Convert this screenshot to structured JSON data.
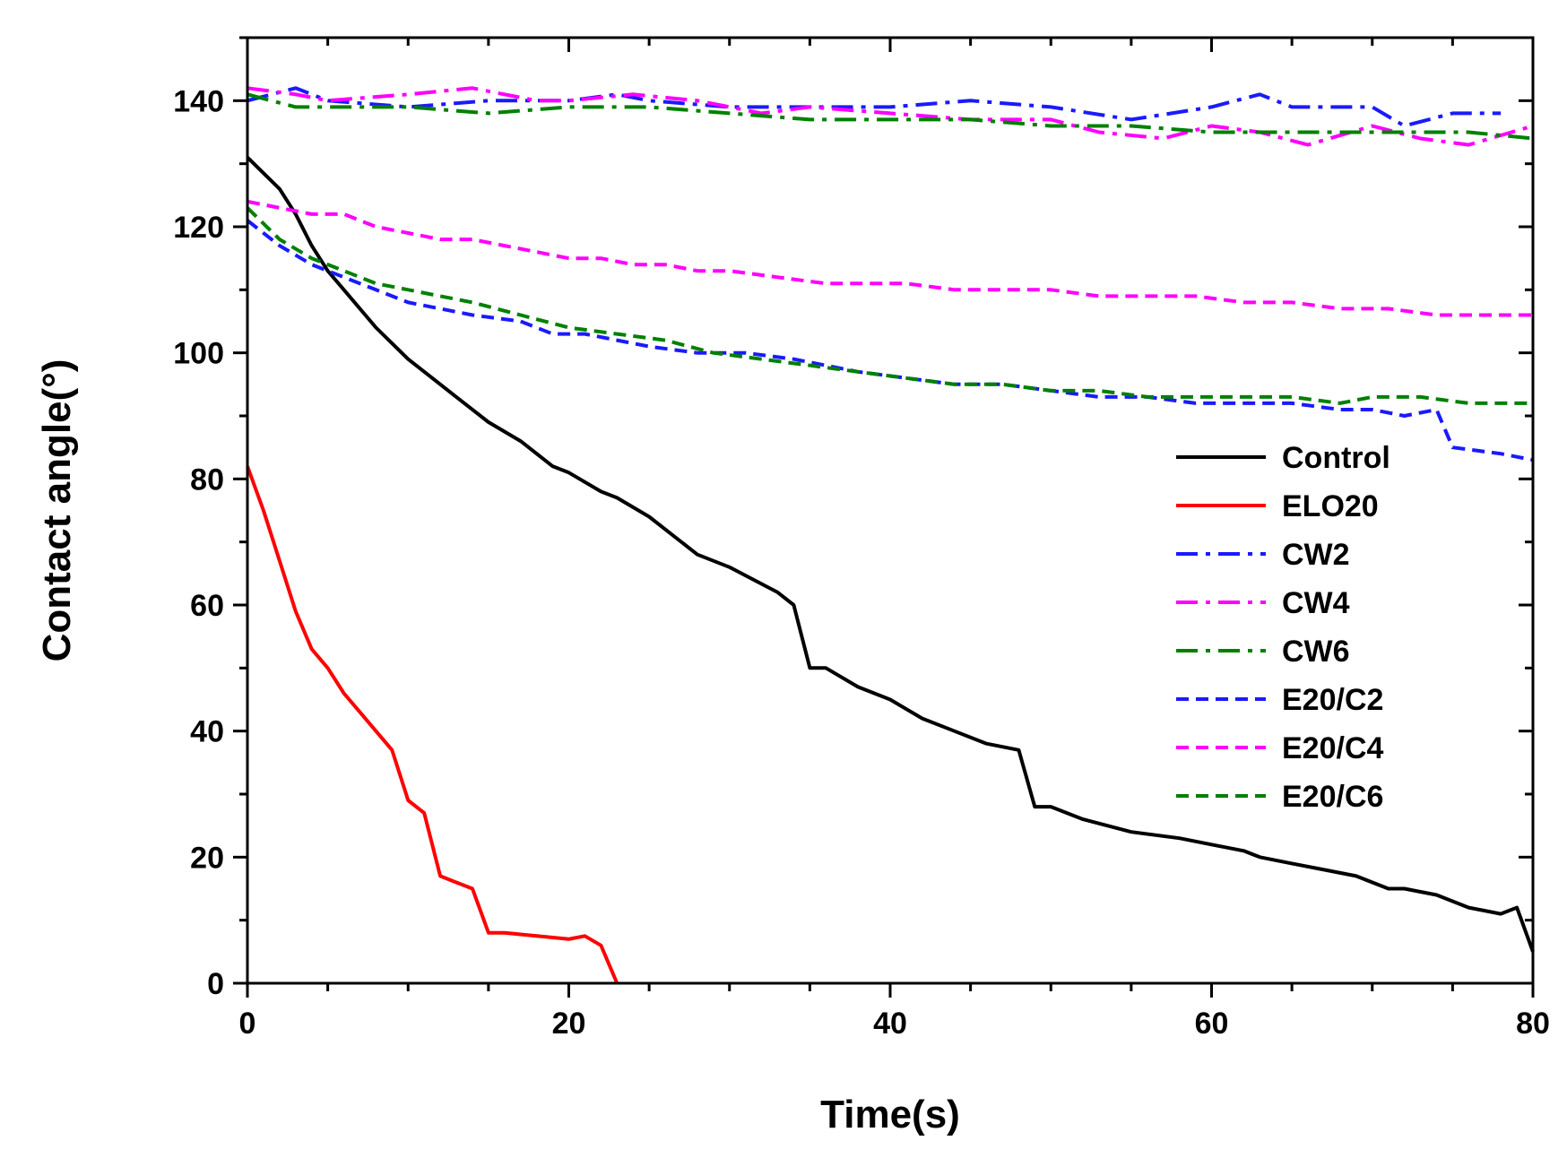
{
  "chart_data": {
    "type": "line",
    "title": "",
    "xlabel": "Time(s)",
    "ylabel": "Contact angle(°)",
    "xlim": [
      0,
      80
    ],
    "ylim": [
      0,
      150
    ],
    "xticks": [
      "0",
      "20",
      "40",
      "60",
      "80"
    ],
    "yticks": [
      "0",
      "20",
      "40",
      "60",
      "80",
      "100",
      "120",
      "140"
    ],
    "grid": false,
    "legend_position": "right",
    "series": [
      {
        "name": "Control",
        "color": "#000000",
        "dash": "solid",
        "x": [
          0,
          2,
          3,
          4,
          5,
          6,
          8,
          10,
          12,
          13,
          15,
          17,
          19,
          20,
          22,
          23,
          25,
          28,
          30,
          33,
          34,
          35,
          36,
          38,
          40,
          42,
          44,
          46,
          48,
          49,
          50,
          52,
          55,
          58,
          60,
          62,
          63,
          65,
          67,
          69,
          71,
          72,
          74,
          76,
          78,
          79,
          80
        ],
        "y": [
          131,
          126,
          122,
          117,
          113,
          110,
          104,
          99,
          95,
          93,
          89,
          86,
          82,
          81,
          78,
          77,
          74,
          68,
          66,
          62,
          60,
          50,
          50,
          47,
          45,
          42,
          40,
          38,
          37,
          28,
          28,
          26,
          24,
          23,
          22,
          21,
          20,
          19,
          18,
          17,
          15,
          15,
          14,
          12,
          11,
          12,
          5
        ]
      },
      {
        "name": "ELO20",
        "color": "#ff0000",
        "dash": "solid",
        "x": [
          0,
          1,
          2,
          3,
          4,
          5,
          6,
          7,
          8,
          9,
          10,
          11,
          12,
          13,
          14,
          15,
          16,
          18,
          20,
          21,
          22,
          23
        ],
        "y": [
          82,
          75,
          67,
          59,
          53,
          50,
          46,
          43,
          40,
          37,
          29,
          27,
          17,
          16,
          15,
          8,
          8,
          7.5,
          7,
          7.5,
          6,
          0
        ]
      },
      {
        "name": "CW2",
        "color": "#1a1aff",
        "dash": "dashdot",
        "x": [
          0,
          3,
          5,
          10,
          15,
          20,
          23,
          25,
          30,
          35,
          40,
          45,
          50,
          55,
          60,
          63,
          65,
          68,
          70,
          72,
          75,
          78
        ],
        "y": [
          140,
          142,
          140,
          139,
          140,
          140,
          141,
          140,
          139,
          139,
          139,
          140,
          139,
          137,
          139,
          141,
          139,
          139,
          139,
          136,
          138,
          138
        ]
      },
      {
        "name": "CW4",
        "color": "#ff00ff",
        "dash": "dashdot",
        "x": [
          0,
          3,
          5,
          10,
          14,
          18,
          20,
          24,
          28,
          32,
          35,
          40,
          45,
          50,
          53,
          57,
          60,
          63,
          66,
          70,
          73,
          76,
          80
        ],
        "y": [
          142,
          141,
          140,
          141,
          142,
          140,
          140,
          141,
          140,
          138,
          139,
          138,
          137,
          137,
          135,
          134,
          136,
          135,
          133,
          136,
          134,
          133,
          136
        ]
      },
      {
        "name": "CW6",
        "color": "#008000",
        "dash": "dashdot",
        "x": [
          0,
          3,
          5,
          10,
          15,
          20,
          25,
          30,
          35,
          40,
          45,
          50,
          55,
          60,
          65,
          70,
          73,
          76,
          80
        ],
        "y": [
          141,
          139,
          139,
          139,
          138,
          139,
          139,
          138,
          137,
          137,
          137,
          136,
          136,
          135,
          135,
          135,
          135,
          135,
          134
        ]
      },
      {
        "name": "E20/C2",
        "color": "#1a1aff",
        "dash": "dash",
        "x": [
          0,
          2,
          4,
          6,
          8,
          10,
          12,
          14,
          17,
          19,
          21,
          23,
          25,
          28,
          31,
          34,
          36,
          38,
          41,
          44,
          47,
          50,
          53,
          56,
          59,
          62,
          65,
          68,
          70,
          72,
          74,
          75,
          78,
          80
        ],
        "y": [
          121,
          117,
          114,
          112,
          110,
          108,
          107,
          106,
          105,
          103,
          103,
          102,
          101,
          100,
          100,
          99,
          98,
          97,
          96,
          95,
          95,
          94,
          93,
          93,
          92,
          92,
          92,
          91,
          91,
          90,
          91,
          85,
          84,
          83
        ]
      },
      {
        "name": "E20/C4",
        "color": "#ff00ff",
        "dash": "dash",
        "x": [
          0,
          2,
          4,
          6,
          8,
          10,
          12,
          14,
          16,
          18,
          20,
          22,
          24,
          26,
          28,
          30,
          33,
          36,
          38,
          41,
          44,
          47,
          50,
          53,
          56,
          59,
          62,
          65,
          68,
          71,
          74,
          77,
          80
        ],
        "y": [
          124,
          123,
          122,
          122,
          120,
          119,
          118,
          118,
          117,
          116,
          115,
          115,
          114,
          114,
          113,
          113,
          112,
          111,
          111,
          111,
          110,
          110,
          110,
          109,
          109,
          109,
          108,
          108,
          107,
          107,
          106,
          106,
          106
        ]
      },
      {
        "name": "E20/C6",
        "color": "#008000",
        "dash": "dash",
        "x": [
          0,
          2,
          4,
          6,
          8,
          10,
          12,
          14,
          17,
          20,
          23,
          26,
          29,
          32,
          35,
          38,
          41,
          44,
          47,
          50,
          53,
          56,
          59,
          62,
          65,
          68,
          70,
          73,
          76,
          80
        ],
        "y": [
          123,
          118,
          115,
          113,
          111,
          110,
          109,
          108,
          106,
          104,
          103,
          102,
          100,
          99,
          98,
          97,
          96,
          95,
          95,
          94,
          94,
          93,
          93,
          93,
          93,
          92,
          93,
          93,
          92,
          92
        ]
      }
    ]
  }
}
